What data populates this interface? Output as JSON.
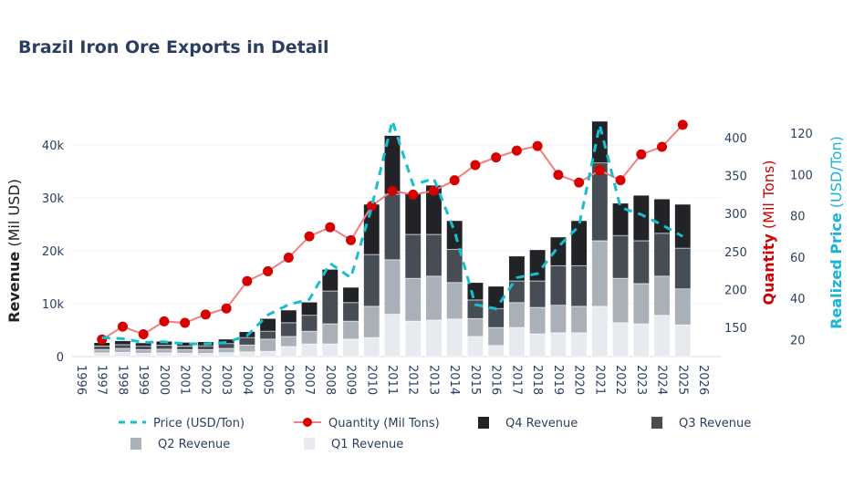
{
  "chart_data": {
    "type": "bar",
    "title": "Brazil Iron Ore Exports in Detail",
    "xlabel": "",
    "x_ticks": [
      "1996",
      "1997",
      "1998",
      "1999",
      "2000",
      "2001",
      "2002",
      "2003",
      "2004",
      "2005",
      "2006",
      "2007",
      "2008",
      "2009",
      "2010",
      "2011",
      "2012",
      "2013",
      "2014",
      "2015",
      "2016",
      "2017",
      "2018",
      "2019",
      "2020",
      "2021",
      "2022",
      "2023",
      "2024",
      "2025",
      "2026"
    ],
    "x": [
      1997,
      1998,
      1999,
      2000,
      2001,
      2002,
      2003,
      2004,
      2005,
      2006,
      2007,
      2008,
      2009,
      2010,
      2011,
      2012,
      2013,
      2014,
      2015,
      2016,
      2017,
      2018,
      2019,
      2020,
      2021,
      2022,
      2023,
      2024,
      2025
    ],
    "xlim": [
      1996,
      2026
    ],
    "y_left": {
      "label_bold": "Revenue",
      "label_unit": "(Mil USD)",
      "ylim": [
        0,
        44600
      ],
      "ticks": [
        0,
        10000,
        20000,
        30000,
        40000
      ],
      "tick_labels": [
        "0",
        "10k",
        "20k",
        "30k",
        "40k"
      ]
    },
    "y_right1": {
      "label_bold": "Quantity",
      "label_unit": "(Mil Tons)",
      "ylim": [
        115,
        460
      ],
      "ticks": [
        150,
        200,
        250,
        300,
        350,
        400
      ],
      "tick_labels": [
        "150",
        "200",
        "250",
        "300",
        "350",
        "400"
      ],
      "color": "#d62728"
    },
    "y_right2": {
      "label_bold": "Realized Price",
      "label_unit": "(USD/Ton)",
      "ylim": [
        12,
        130
      ],
      "ticks": [
        20,
        40,
        60,
        80,
        100,
        120
      ],
      "tick_labels": [
        "20",
        "40",
        "60",
        "80",
        "100",
        "120"
      ],
      "color": "#17becf"
    },
    "series": [
      {
        "name": "Q1 Revenue",
        "type": "bar",
        "color": "#e7eaee",
        "values": [
          700,
          800,
          650,
          700,
          650,
          600,
          750,
          900,
          1000,
          1900,
          2400,
          2400,
          3300,
          3600,
          8000,
          6700,
          6900,
          7100,
          3800,
          2100,
          5500,
          4300,
          4500,
          4500,
          9500,
          6400,
          6200,
          7800,
          6000
        ]
      },
      {
        "name": "Q2 Revenue",
        "type": "bar",
        "color": "#aab0b8",
        "values": [
          650,
          750,
          650,
          700,
          650,
          700,
          800,
          1300,
          2300,
          1900,
          2400,
          3800,
          3400,
          5900,
          10300,
          8100,
          8300,
          6900,
          3400,
          3400,
          4700,
          5000,
          5200,
          5000,
          12400,
          8400,
          7600,
          7400,
          6800
        ]
      },
      {
        "name": "Q3 Revenue",
        "type": "bar",
        "color": "#474d55",
        "values": [
          650,
          700,
          650,
          750,
          700,
          750,
          900,
          1400,
          1500,
          2600,
          3000,
          6200,
          3500,
          9800,
          12400,
          8300,
          7900,
          6300,
          3500,
          3600,
          4100,
          5000,
          7500,
          7700,
          14700,
          8100,
          8100,
          8100,
          7700
        ]
      },
      {
        "name": "Q4 Revenue",
        "type": "bar",
        "color": "#212327",
        "values": [
          650,
          750,
          650,
          750,
          700,
          750,
          850,
          1100,
          2400,
          2400,
          2500,
          4100,
          2900,
          9500,
          11100,
          7900,
          9300,
          5400,
          3300,
          4200,
          4700,
          5900,
          5400,
          8500,
          7900,
          6100,
          8600,
          6500,
          8300
        ]
      },
      {
        "name": "Quantity (Mil Tons)",
        "type": "line",
        "axis": "y_right1",
        "color": "#d62728",
        "values": [
          134,
          151,
          141,
          158,
          156,
          167,
          175,
          211,
          224,
          242,
          270,
          282,
          265,
          310,
          330,
          325,
          330,
          344,
          364,
          374,
          383,
          389,
          351,
          341,
          357,
          344,
          378,
          388,
          417
        ]
      },
      {
        "name": "Price (USD/Ton)",
        "type": "line",
        "axis": "y_right2",
        "dash": true,
        "color": "#17becf",
        "values": [
          21,
          20.5,
          18.7,
          19,
          18,
          18,
          18.7,
          22,
          32,
          37,
          39.5,
          57,
          50,
          84,
          126,
          95,
          98,
          72.5,
          37,
          35,
          50,
          52,
          65,
          75,
          124,
          84,
          80.6,
          75.6,
          70
        ]
      }
    ],
    "legend": [
      "Price (USD/Ton)",
      "Quantity (Mil Tons)",
      "Q4 Revenue",
      "Q3 Revenue",
      "Q2 Revenue",
      "Q1 Revenue"
    ],
    "legend_position": "bottom",
    "grid": true
  }
}
